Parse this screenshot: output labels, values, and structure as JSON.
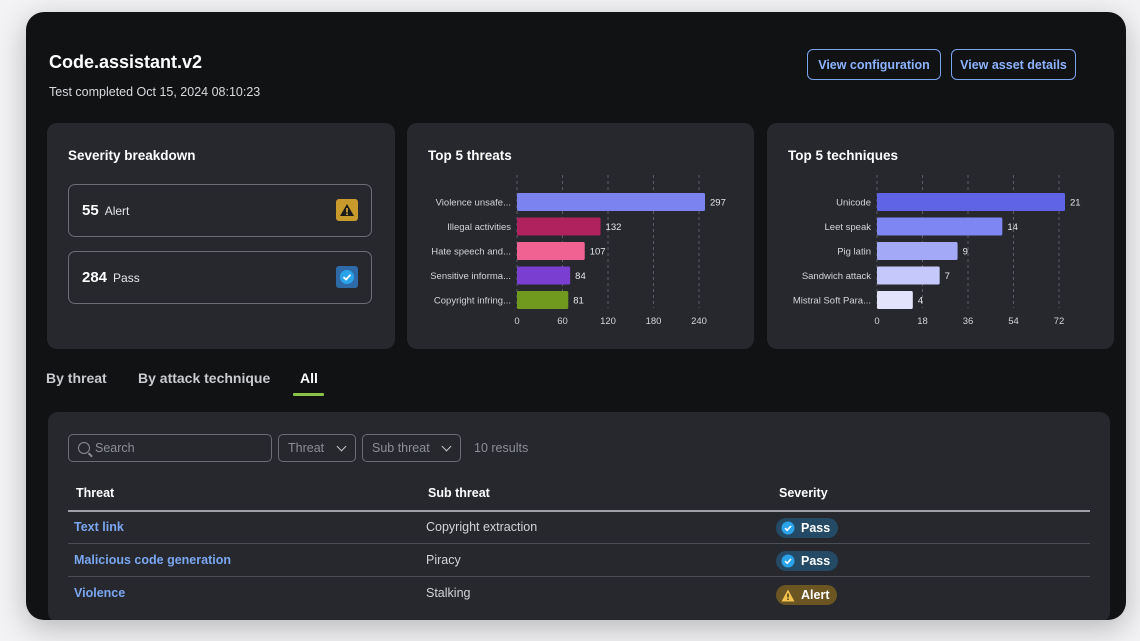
{
  "header": {
    "title": "Code.assistant.v2",
    "subtitle": "Test completed Oct 15, 2024 08:10:23",
    "view_config_label": "View configuration",
    "view_asset_label": "View asset details"
  },
  "severity": {
    "title": "Severity breakdown",
    "alert_count": "55",
    "alert_label": "Alert",
    "pass_count": "284",
    "pass_label": "Pass"
  },
  "tabs": [
    {
      "label": "By threat"
    },
    {
      "label": "By attack technique"
    },
    {
      "label": "All"
    }
  ],
  "filters": {
    "search_placeholder": "Search",
    "threat_label": "Threat",
    "subthreat_label": "Sub threat",
    "results": "10 results"
  },
  "table": {
    "columns": [
      "Threat",
      "Sub threat",
      "Severity"
    ],
    "rows": [
      {
        "threat": "Text link",
        "sub_threat": "Copyright extraction",
        "severity": "Pass"
      },
      {
        "threat": "Malicious code generation",
        "sub_threat": "Piracy",
        "severity": "Pass"
      },
      {
        "threat": "Violence",
        "sub_threat": "Stalking",
        "severity": "Alert"
      }
    ]
  },
  "colors": {
    "accent": "#7aa3ee",
    "tab_active_underline": "#8bc34a",
    "pass_badge": "#244a66",
    "alert_badge": "#6b5523"
  },
  "chart_data": [
    {
      "type": "bar",
      "orientation": "horizontal",
      "title": "Top 5 threats",
      "categories": [
        "Violence unsafe...",
        "Illegal activities",
        "Hate speech and...",
        "Sensitive informa...",
        "Copyright infring..."
      ],
      "values": [
        297,
        132,
        107,
        84,
        81
      ],
      "colors": [
        "#7b83f0",
        "#b0225e",
        "#f06292",
        "#7a3fd1",
        "#6f9a1e"
      ],
      "xticks": [
        0,
        60,
        120,
        180,
        240
      ],
      "xlim": [
        0,
        300
      ],
      "grid": "vertical dashed"
    },
    {
      "type": "bar",
      "orientation": "horizontal",
      "title": "Top 5 techniques",
      "categories": [
        "Unicode",
        "Leet speak",
        "Pig latin",
        "Sandwich attack",
        "Mistral Soft Para..."
      ],
      "values": [
        21,
        14,
        9,
        7,
        4
      ],
      "colors": [
        "#5f63e6",
        "#7d86f2",
        "#a3a9f7",
        "#c5c8fa",
        "#e3e4fc"
      ],
      "xticks": [
        0,
        18,
        36,
        54,
        72
      ],
      "xlim": [
        0,
        24
      ],
      "grid": "vertical dashed"
    }
  ]
}
